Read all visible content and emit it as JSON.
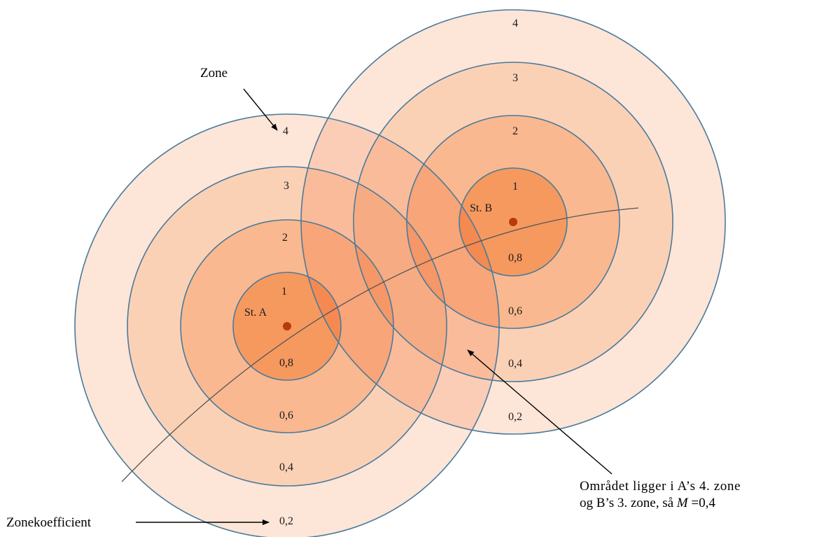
{
  "colors": {
    "ring_outer": "#fde5d8",
    "ring_3": "#fbd1b6",
    "ring_2": "#f9b88f",
    "ring_inner": "#f6995f",
    "ring_stroke": "#4a7a9a",
    "station_dot": "#b83a0e",
    "path_line": "#555555",
    "arrow": "#000000"
  },
  "stations": [
    {
      "name": "St. A",
      "zones": [
        "1",
        "2",
        "3",
        "4"
      ],
      "coefficients": [
        "0,8",
        "0,6",
        "0,4",
        "0,2"
      ]
    },
    {
      "name": "St. B",
      "zones": [
        "1",
        "2",
        "3",
        "4"
      ],
      "coefficients": [
        "0,8",
        "0,6",
        "0,4",
        "0,2"
      ]
    }
  ],
  "labels": {
    "zone": "Zone",
    "coefficient": "Zonekoefficient",
    "note_line1": "Området ligger i A’s 4. zone",
    "note_line2_prefix": "og B’s 3. zone, så ",
    "note_line2_var": "M",
    "note_line2_suffix": " =0,4"
  }
}
